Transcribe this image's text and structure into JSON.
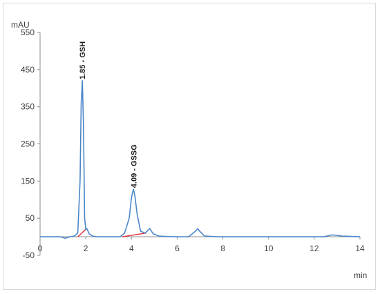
{
  "chart_data": {
    "type": "line",
    "title": "",
    "y_unit": "mAU",
    "x_unit": "min",
    "xlim": [
      0,
      14
    ],
    "ylim": [
      -50,
      550
    ],
    "x_ticks": [
      "0",
      "2",
      "4",
      "6",
      "8",
      "10",
      "12",
      "14"
    ],
    "y_ticks": [
      "550",
      "450",
      "350",
      "250",
      "150",
      "50",
      "-50"
    ],
    "grid": false,
    "legend": "none",
    "line_color": "#4a86c8",
    "baseline_color": "#e0303a",
    "series": [
      {
        "x": [
          0,
          0.9,
          1.1,
          1.3,
          1.5,
          1.65,
          1.75,
          1.8,
          1.85,
          1.9,
          1.95,
          2.0,
          2.05,
          2.15,
          2.3,
          2.5,
          3.0,
          3.5,
          3.7,
          3.9,
          4.0,
          4.05,
          4.09,
          4.15,
          4.25,
          4.4,
          4.6,
          4.8,
          4.95,
          5.2,
          5.8,
          6.5,
          6.8,
          6.9,
          7.0,
          7.2,
          7.8,
          10,
          12.4,
          12.8,
          13.2,
          14
        ],
        "y": [
          0,
          0,
          -4,
          0,
          2,
          10,
          150,
          360,
          420,
          300,
          50,
          20,
          22,
          8,
          2,
          0,
          0,
          0,
          10,
          50,
          105,
          120,
          128,
          110,
          60,
          15,
          10,
          22,
          8,
          2,
          0,
          0,
          15,
          22,
          14,
          2,
          0,
          0,
          0,
          5,
          2,
          0
        ]
      }
    ],
    "baselines": [
      {
        "x": [
          1.65,
          2.0
        ],
        "y": [
          0,
          20
        ]
      },
      {
        "x": [
          3.6,
          4.65
        ],
        "y": [
          0,
          10
        ]
      }
    ],
    "annotations": [
      {
        "x": 1.85,
        "y": 420,
        "text": "1.85 - GSH"
      },
      {
        "x": 4.09,
        "y": 128,
        "text": "4.09 - GSSG"
      }
    ]
  }
}
